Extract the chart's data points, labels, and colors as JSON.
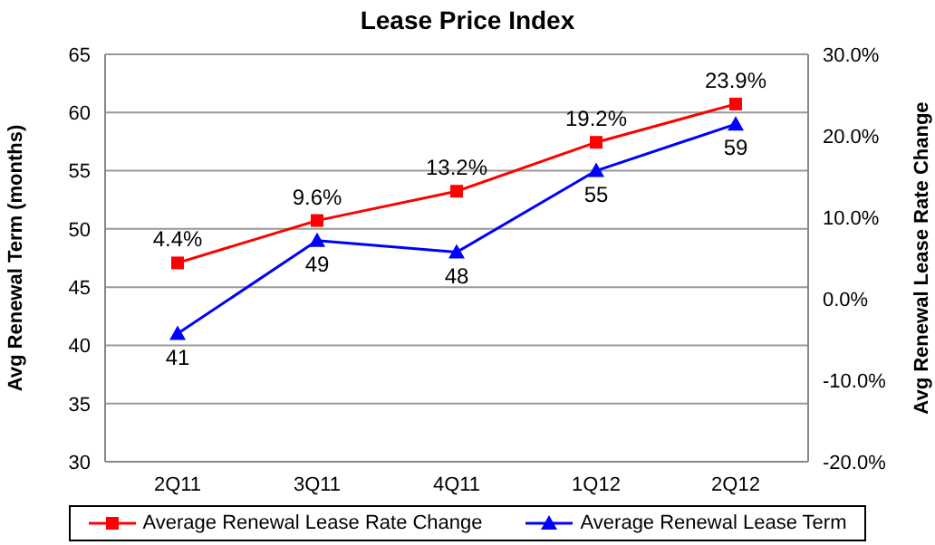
{
  "chart_data": {
    "type": "line",
    "title": "Lease Price Index",
    "categories": [
      "2Q11",
      "3Q11",
      "4Q11",
      "1Q12",
      "2Q12"
    ],
    "ylabel": "Avg Renewal Term (months)",
    "y2label": "Avg Renewal Lease Rate Change",
    "series": [
      {
        "name": "Average Renewal Lease Rate Change",
        "color": "#ff0000",
        "axis": "y2",
        "marker": "square",
        "values": [
          4.4,
          9.6,
          13.2,
          19.2,
          23.9
        ],
        "value_labels": [
          "4.4%",
          "9.6%",
          "13.2%",
          "19.2%",
          "23.9%"
        ]
      },
      {
        "name": "Average Renewal Lease Term",
        "color": "#0000ff",
        "axis": "y",
        "marker": "triangle",
        "values": [
          41,
          49,
          48,
          55,
          59
        ],
        "value_labels": [
          "41",
          "49",
          "48",
          "55",
          "59"
        ]
      }
    ],
    "ylim": [
      30,
      65
    ],
    "yticks": [
      30,
      35,
      40,
      45,
      50,
      55,
      60,
      65
    ],
    "y2lim": [
      -20,
      30
    ],
    "y2ticks": [
      {
        "value": -20,
        "label": "-20.0%"
      },
      {
        "value": -10,
        "label": "-10.0%"
      },
      {
        "value": 0,
        "label": "0.0%"
      },
      {
        "value": 10,
        "label": "10.0%"
      },
      {
        "value": 20,
        "label": "20.0%"
      },
      {
        "value": 30,
        "label": "30.0%"
      }
    ],
    "grid": "y",
    "legend": "bottom",
    "line_style": "solid"
  }
}
